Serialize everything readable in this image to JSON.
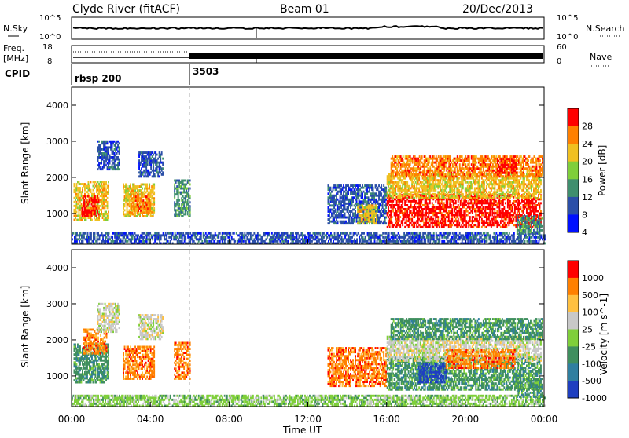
{
  "header": {
    "station": "Clyde River (fitACF)",
    "beam": "Beam 01",
    "date": "20/Dec/2013"
  },
  "summary_panels": {
    "nsky_label": "N.Sky",
    "nsky_ticks": [
      "10^5",
      "10^0"
    ],
    "nsearch_label": "N.Search",
    "nsearch_ticks": [
      "10^5",
      "10^0"
    ],
    "freq_label": "Freq.",
    "freq_unit": "[MHz]",
    "freq_ticks": [
      "18",
      "8"
    ],
    "nave_label": "Nave",
    "nave_ticks": [
      "60",
      "0"
    ],
    "cpid_label": "CPID",
    "cpid_segments": [
      {
        "label": "rbsp 200",
        "start_hour": 0
      },
      {
        "label": "3503",
        "start_hour": 6
      }
    ]
  },
  "chart_data": [
    {
      "type": "heatmap",
      "name": "power-panel",
      "ylabel": "Slant Range [km]",
      "xlabel": "",
      "xlim": [
        0,
        24
      ],
      "ylim": [
        150,
        4500
      ],
      "yticks": [
        "4000",
        "3000",
        "2000",
        "1000"
      ],
      "colorbar_label": "Power [dB]",
      "colorbar_ticks": [
        "28",
        "24",
        "20",
        "16",
        "12",
        "8",
        "4"
      ],
      "colors": [
        "#0010ff",
        "#2b4fa8",
        "#3f8f6e",
        "#7fcf3a",
        "#f0c020",
        "#ff8000",
        "#ff0000"
      ],
      "regions": [
        {
          "t0": 0.1,
          "t1": 1.9,
          "r0": 800,
          "r1": 1900,
          "level": 4
        },
        {
          "t0": 0.5,
          "t1": 1.4,
          "r0": 900,
          "r1": 1500,
          "level": 6
        },
        {
          "t0": 2.6,
          "t1": 4.2,
          "r0": 900,
          "r1": 1800,
          "level": 4
        },
        {
          "t0": 3.0,
          "t1": 4.0,
          "r0": 1000,
          "r1": 1500,
          "level": 5
        },
        {
          "t0": 3.4,
          "t1": 4.6,
          "r0": 2000,
          "r1": 2700,
          "level": 1
        },
        {
          "t0": 1.3,
          "t1": 2.4,
          "r0": 2200,
          "r1": 3000,
          "level": 1
        },
        {
          "t0": 5.2,
          "t1": 6.0,
          "r0": 900,
          "r1": 1900,
          "level": 2
        },
        {
          "t0": 0.0,
          "t1": 24.0,
          "r0": 150,
          "r1": 450,
          "level": 1
        },
        {
          "t0": 13.0,
          "t1": 16.0,
          "r0": 700,
          "r1": 1800,
          "level": 1
        },
        {
          "t0": 14.5,
          "t1": 15.5,
          "r0": 700,
          "r1": 1200,
          "level": 4
        },
        {
          "t0": 16.0,
          "t1": 23.8,
          "r0": 600,
          "r1": 1500,
          "level": 6
        },
        {
          "t0": 16.0,
          "t1": 23.8,
          "r0": 1400,
          "r1": 2100,
          "level": 4
        },
        {
          "t0": 16.2,
          "t1": 23.9,
          "r0": 2000,
          "r1": 2600,
          "level": 5
        },
        {
          "t0": 21.6,
          "t1": 22.6,
          "r0": 2100,
          "r1": 2500,
          "level": 6
        },
        {
          "t0": 22.6,
          "t1": 23.9,
          "r0": 400,
          "r1": 900,
          "level": 2
        }
      ]
    },
    {
      "type": "heatmap",
      "name": "velocity-panel",
      "ylabel": "Slant Range [km]",
      "xlabel": "Time UT",
      "xlim": [
        0,
        24
      ],
      "ylim": [
        150,
        4500
      ],
      "xticks": [
        "00:00",
        "04:00",
        "08:00",
        "12:00",
        "16:00",
        "20:00",
        "00:00"
      ],
      "yticks": [
        "4000",
        "3000",
        "2000",
        "1000"
      ],
      "colorbar_label": "Velocity [m s^-1]",
      "colorbar_ticks": [
        "1000",
        "500",
        "100",
        "25",
        "-25",
        "-100",
        "-500",
        "-1000"
      ],
      "colors": [
        "#1f3fc0",
        "#2f7fa0",
        "#3f8f5e",
        "#7fcf3a",
        "#c8c8c8",
        "#ffc040",
        "#ff8000",
        "#ff0000"
      ],
      "regions": [
        {
          "t0": 0.1,
          "t1": 1.9,
          "r0": 800,
          "r1": 1900,
          "level": 2
        },
        {
          "t0": 0.6,
          "t1": 1.8,
          "r0": 1600,
          "r1": 2300,
          "level": 6
        },
        {
          "t0": 2.6,
          "t1": 4.2,
          "r0": 900,
          "r1": 1800,
          "level": 6
        },
        {
          "t0": 3.4,
          "t1": 4.6,
          "r0": 2000,
          "r1": 2700,
          "level": 4
        },
        {
          "t0": 1.3,
          "t1": 2.4,
          "r0": 2200,
          "r1": 3000,
          "level": 4
        },
        {
          "t0": 5.2,
          "t1": 6.0,
          "r0": 900,
          "r1": 1900,
          "level": 6
        },
        {
          "t0": 0.0,
          "t1": 24.0,
          "r0": 150,
          "r1": 450,
          "level": 3
        },
        {
          "t0": 13.0,
          "t1": 16.0,
          "r0": 700,
          "r1": 1800,
          "level": 6
        },
        {
          "t0": 16.0,
          "t1": 23.8,
          "r0": 600,
          "r1": 1500,
          "level": 2
        },
        {
          "t0": 17.6,
          "t1": 19.0,
          "r0": 800,
          "r1": 1300,
          "level": 0
        },
        {
          "t0": 16.0,
          "t1": 23.8,
          "r0": 1400,
          "r1": 2100,
          "level": 4
        },
        {
          "t0": 19.0,
          "t1": 22.5,
          "r0": 1200,
          "r1": 1700,
          "level": 6
        },
        {
          "t0": 16.2,
          "t1": 23.9,
          "r0": 2000,
          "r1": 2600,
          "level": 2
        },
        {
          "t0": 22.6,
          "t1": 23.9,
          "r0": 400,
          "r1": 900,
          "level": 2
        }
      ]
    }
  ]
}
